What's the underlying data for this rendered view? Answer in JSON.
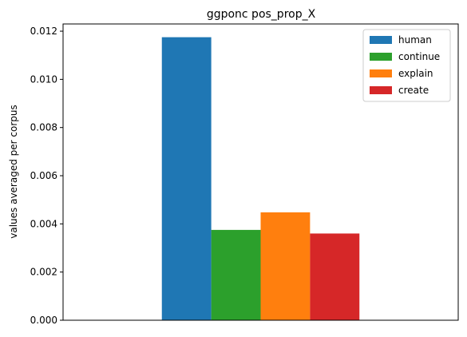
{
  "chart_data": {
    "type": "bar",
    "title": "ggponc pos_prop_X",
    "xlabel": "",
    "ylabel": "values averaged per corpus",
    "ylim": [
      0,
      0.0123
    ],
    "yticks": [
      "0.000",
      "0.002",
      "0.004",
      "0.006",
      "0.008",
      "0.010",
      "0.012"
    ],
    "ytick_values": [
      0,
      0.002,
      0.004,
      0.006,
      0.008,
      0.01,
      0.012
    ],
    "grid": false,
    "legend_position": "top-right",
    "series": [
      {
        "name": "human",
        "values": [
          0.01175
        ],
        "color": "#1f77b4"
      },
      {
        "name": "continue",
        "values": [
          0.00375
        ],
        "color": "#2ca02c"
      },
      {
        "name": "explain",
        "values": [
          0.00448
        ],
        "color": "#ff7f0e"
      },
      {
        "name": "create",
        "values": [
          0.0036
        ],
        "color": "#d62728"
      }
    ]
  }
}
